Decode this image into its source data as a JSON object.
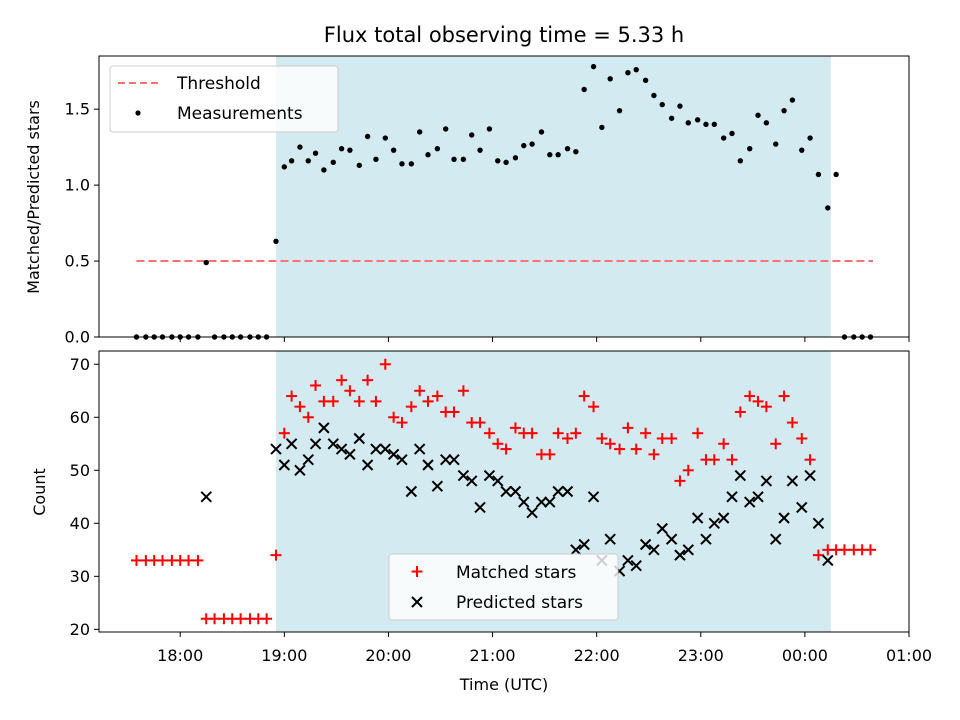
{
  "chart_data": {
    "title": "Flux total observing time = 5.33 h",
    "xlabel": "Time (UTC)",
    "x_ticks": [
      "18:00",
      "19:00",
      "20:00",
      "21:00",
      "22:00",
      "23:00",
      "00:00",
      "01:00"
    ],
    "x_tick_hours": [
      18,
      19,
      20,
      21,
      22,
      23,
      24,
      25
    ],
    "xlim": [
      17.22,
      25.0
    ],
    "shaded_span": [
      18.92,
      24.25
    ],
    "shade_color": "#d4eaf1",
    "panels": [
      {
        "type": "scatter",
        "ylabel": "Matched/Predicted stars",
        "ylim": [
          0,
          1.85
        ],
        "yticks": [
          "0.0",
          "0.5",
          "1.0",
          "1.5"
        ],
        "ytick_values": [
          0,
          0.5,
          1.0,
          1.5
        ],
        "legend_position": "top-left",
        "series": [
          {
            "name": "Threshold",
            "kind": "dashed-line",
            "color": "#ff7070",
            "x": [
              17.58,
              25.0
            ],
            "y": [
              0.5,
              0.5
            ]
          },
          {
            "name": "Measurements",
            "kind": "dot",
            "color": "#000000",
            "x": [
              17.58,
              17.67,
              17.75,
              17.83,
              17.92,
              18.0,
              18.08,
              18.17,
              18.25,
              18.33,
              18.42,
              18.5,
              18.58,
              18.67,
              18.75,
              18.83,
              18.92,
              19.0,
              19.07,
              19.15,
              19.23,
              19.3,
              19.38,
              19.47,
              19.55,
              19.63,
              19.72,
              19.8,
              19.88,
              19.97,
              20.05,
              20.13,
              20.22,
              20.3,
              20.38,
              20.47,
              20.55,
              20.63,
              20.72,
              20.8,
              20.88,
              20.97,
              21.05,
              21.13,
              21.22,
              21.3,
              21.38,
              21.47,
              21.55,
              21.63,
              21.72,
              21.8,
              21.88,
              21.97,
              22.05,
              22.13,
              22.22,
              22.3,
              22.38,
              22.47,
              22.55,
              22.63,
              22.72,
              22.8,
              22.88,
              22.97,
              23.05,
              23.13,
              23.22,
              23.3,
              23.38,
              23.47,
              23.55,
              23.63,
              23.72,
              23.8,
              23.88,
              23.97,
              24.05,
              24.13,
              24.22,
              24.3,
              24.38,
              24.47,
              24.55,
              24.63
            ],
            "y": [
              0,
              0,
              0,
              0,
              0,
              0,
              0,
              0,
              0.49,
              0,
              0,
              0,
              0,
              0,
              0,
              0,
              0.63,
              1.12,
              1.16,
              1.25,
              1.16,
              1.21,
              1.1,
              1.15,
              1.24,
              1.23,
              1.13,
              1.32,
              1.17,
              1.31,
              1.23,
              1.14,
              1.14,
              1.35,
              1.2,
              1.24,
              1.37,
              1.17,
              1.17,
              1.33,
              1.23,
              1.37,
              1.16,
              1.15,
              1.18,
              1.26,
              1.27,
              1.35,
              1.2,
              1.2,
              1.24,
              1.22,
              1.63,
              1.78,
              1.38,
              1.7,
              1.49,
              1.74,
              1.76,
              1.69,
              1.59,
              1.53,
              1.44,
              1.52,
              1.41,
              1.43,
              1.4,
              1.4,
              1.31,
              1.34,
              1.16,
              1.24,
              1.46,
              1.41,
              1.27,
              1.49,
              1.56,
              1.23,
              1.31,
              1.07,
              0.85,
              1.07,
              0,
              0,
              0,
              0
            ]
          }
        ]
      },
      {
        "type": "scatter",
        "ylabel": "Count",
        "ylim": [
          19.5,
          72.5
        ],
        "yticks": [
          "20",
          "30",
          "40",
          "50",
          "60",
          "70"
        ],
        "ytick_values": [
          20,
          30,
          40,
          50,
          60,
          70
        ],
        "legend_position": "lower-center",
        "series": [
          {
            "name": "Matched stars",
            "kind": "plus",
            "color": "#ff0000",
            "x": [
              17.58,
              17.67,
              17.75,
              17.83,
              17.92,
              18.0,
              18.08,
              18.17,
              18.25,
              18.33,
              18.42,
              18.5,
              18.58,
              18.67,
              18.75,
              18.83,
              18.92,
              19.0,
              19.07,
              19.15,
              19.23,
              19.3,
              19.38,
              19.47,
              19.55,
              19.63,
              19.72,
              19.8,
              19.88,
              19.97,
              20.05,
              20.13,
              20.22,
              20.3,
              20.38,
              20.47,
              20.55,
              20.63,
              20.72,
              20.8,
              20.88,
              20.97,
              21.05,
              21.13,
              21.22,
              21.3,
              21.38,
              21.47,
              21.55,
              21.63,
              21.72,
              21.8,
              21.88,
              21.97,
              22.05,
              22.13,
              22.22,
              22.3,
              22.38,
              22.47,
              22.55,
              22.63,
              22.72,
              22.8,
              22.88,
              22.97,
              23.05,
              23.13,
              23.22,
              23.3,
              23.38,
              23.47,
              23.55,
              23.63,
              23.72,
              23.8,
              23.88,
              23.97,
              24.05,
              24.13,
              24.22,
              24.3,
              24.38,
              24.47,
              24.55,
              24.63
            ],
            "y": [
              33,
              33,
              33,
              33,
              33,
              33,
              33,
              33,
              22,
              22,
              22,
              22,
              22,
              22,
              22,
              22,
              34,
              57,
              64,
              62,
              60,
              66,
              63,
              63,
              67,
              65,
              63,
              67,
              63,
              70,
              60,
              59,
              62,
              65,
              63,
              64,
              61,
              61,
              65,
              59,
              59,
              57,
              55,
              54,
              58,
              57,
              57,
              53,
              53,
              57,
              56,
              57,
              64,
              62,
              56,
              55,
              54,
              58,
              54,
              57,
              53,
              56,
              56,
              48,
              50,
              57,
              52,
              52,
              55,
              52,
              61,
              64,
              63,
              62,
              55,
              64,
              59,
              56,
              52,
              34,
              35,
              35,
              35,
              35,
              35,
              35
            ]
          },
          {
            "name": "Predicted stars",
            "kind": "x",
            "color": "#000000",
            "x": [
              18.25,
              18.92,
              19.0,
              19.07,
              19.15,
              19.23,
              19.3,
              19.38,
              19.47,
              19.55,
              19.63,
              19.72,
              19.8,
              19.88,
              19.97,
              20.05,
              20.13,
              20.22,
              20.3,
              20.38,
              20.47,
              20.55,
              20.63,
              20.72,
              20.8,
              20.88,
              20.97,
              21.05,
              21.13,
              21.22,
              21.3,
              21.38,
              21.47,
              21.55,
              21.63,
              21.72,
              21.8,
              21.88,
              21.97,
              22.05,
              22.13,
              22.22,
              22.3,
              22.38,
              22.47,
              22.55,
              22.63,
              22.72,
              22.8,
              22.88,
              22.97,
              23.05,
              23.13,
              23.22,
              23.3,
              23.38,
              23.47,
              23.55,
              23.63,
              23.72,
              23.8,
              23.88,
              23.97,
              24.05,
              24.13,
              24.22
            ],
            "y": [
              45,
              54,
              51,
              55,
              50,
              52,
              55,
              58,
              55,
              54,
              53,
              56,
              51,
              54,
              54,
              53,
              52,
              46,
              54,
              51,
              47,
              52,
              52,
              49,
              48,
              43,
              49,
              48,
              46,
              46,
              44,
              42,
              44,
              44,
              46,
              46,
              35,
              36,
              45,
              33,
              37,
              31,
              33,
              32,
              36,
              35,
              39,
              37,
              34,
              35,
              41,
              37,
              40,
              41,
              45,
              49,
              44,
              45,
              48,
              37,
              41,
              48,
              43,
              49,
              40,
              33
            ]
          }
        ]
      }
    ]
  }
}
